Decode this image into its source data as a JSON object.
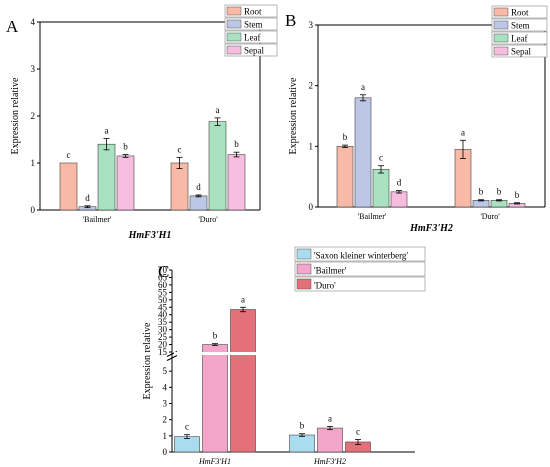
{
  "chart_data": [
    {
      "type": "bar",
      "panel_label": "A",
      "title": "HmF3'H1",
      "xlabel": "",
      "ylabel": "Expression relative",
      "ylim": [
        0,
        4
      ],
      "yticks": [
        "0",
        "1",
        "2",
        "3",
        "4"
      ],
      "categories": [
        "'Bailmer'",
        "'Duro'"
      ],
      "legend_position": "top-right",
      "series": [
        {
          "name": "Root",
          "color": "#f8b9a6",
          "values": [
            1.0,
            1.0
          ],
          "errors": [
            0.0,
            0.12
          ],
          "letters": [
            "c",
            "c"
          ]
        },
        {
          "name": "Stem",
          "color": "#bcc7e6",
          "values": [
            0.07,
            0.3
          ],
          "errors": [
            0.02,
            0.02
          ],
          "letters": [
            "d",
            "d"
          ]
        },
        {
          "name": "Leaf",
          "color": "#a8e2c0",
          "values": [
            1.4,
            1.88
          ],
          "errors": [
            0.12,
            0.08
          ],
          "letters": [
            "a",
            "a"
          ]
        },
        {
          "name": "Sepal",
          "color": "#f6bddf",
          "values": [
            1.15,
            1.18
          ],
          "errors": [
            0.03,
            0.05
          ],
          "letters": [
            "b",
            "b"
          ]
        }
      ]
    },
    {
      "type": "bar",
      "panel_label": "B",
      "title": "HmF3'H2",
      "xlabel": "",
      "ylabel": "Expression relative",
      "ylim": [
        0,
        3
      ],
      "yticks": [
        "0",
        "1",
        "2",
        "3"
      ],
      "categories": [
        "'Bailmer'",
        "'Duro'"
      ],
      "legend_position": "top-right",
      "series": [
        {
          "name": "Root",
          "color": "#f8b9a6",
          "values": [
            1.0,
            0.95
          ],
          "errors": [
            0.02,
            0.15
          ],
          "letters": [
            "b",
            "a"
          ]
        },
        {
          "name": "Stem",
          "color": "#bcc7e6",
          "values": [
            1.8,
            0.11
          ],
          "errors": [
            0.05,
            0.01
          ],
          "letters": [
            "a",
            "b"
          ]
        },
        {
          "name": "Leaf",
          "color": "#a8e2c0",
          "values": [
            0.62,
            0.11
          ],
          "errors": [
            0.06,
            0.01
          ],
          "letters": [
            "c",
            "b"
          ]
        },
        {
          "name": "Sepal",
          "color": "#f6bddf",
          "values": [
            0.25,
            0.06
          ],
          "errors": [
            0.02,
            0.01
          ],
          "letters": [
            "d",
            "b"
          ]
        }
      ]
    },
    {
      "type": "bar",
      "panel_label": "C",
      "title": "",
      "xlabel": "",
      "ylabel": "Expression relative",
      "ylim": [
        0,
        70
      ],
      "axis_break": [
        6,
        15
      ],
      "yticks": [
        "0",
        "1",
        "2",
        "3",
        "4",
        "5",
        "15",
        "20",
        "25",
        "30",
        "35",
        "40",
        "45",
        "50",
        "55",
        "60",
        "65",
        "70"
      ],
      "categories": [
        "HmF3'H1",
        "HmF3'H2"
      ],
      "legend_position": "top",
      "series": [
        {
          "name": "'Saxon kleiner winterberg'",
          "color": "#a9dcef",
          "values": [
            0.95,
            1.05
          ],
          "errors": [
            0.12,
            0.08
          ],
          "letters": [
            "c",
            "b"
          ]
        },
        {
          "name": "'Bailmer'",
          "color": "#f3a6c9",
          "values": [
            20.0,
            1.48
          ],
          "errors": [
            0.6,
            0.1
          ],
          "letters": [
            "b",
            "a"
          ]
        },
        {
          "name": "'Duro'",
          "color": "#e4707a",
          "values": [
            43.5,
            0.62
          ],
          "errors": [
            1.5,
            0.15
          ],
          "letters": [
            "a",
            "c"
          ]
        }
      ]
    }
  ]
}
